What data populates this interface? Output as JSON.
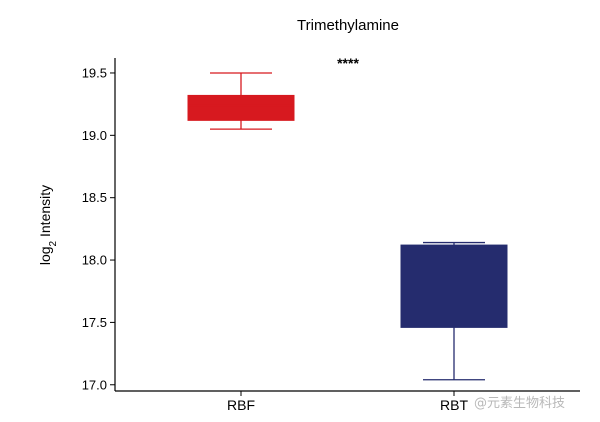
{
  "chart_data": {
    "type": "box",
    "title": "Trimethylamine",
    "ylabel": "log",
    "ylabel_sub": "2",
    "ylabel_rest": " Intensity",
    "xlabel": "",
    "ylim": [
      16.95,
      19.62
    ],
    "yticks": [
      17.0,
      17.5,
      18.0,
      18.5,
      19.0,
      19.5
    ],
    "ytick_labels": [
      "17.0",
      "17.5",
      "18.0",
      "18.5",
      "19.0",
      "19.5"
    ],
    "categories": [
      "RBF",
      "RBT"
    ],
    "boxes": [
      {
        "category": "RBF",
        "min": 19.05,
        "q1": 19.12,
        "median": 19.24,
        "q3": 19.32,
        "max": 19.5,
        "color": "#d7191f"
      },
      {
        "category": "RBT",
        "min": 17.04,
        "q1": 17.46,
        "median": 17.95,
        "q3": 18.12,
        "max": 18.14,
        "color": "#252c6e"
      }
    ],
    "significance": "****",
    "grid": false,
    "legend": "none"
  },
  "watermark": "@元素生物科技"
}
